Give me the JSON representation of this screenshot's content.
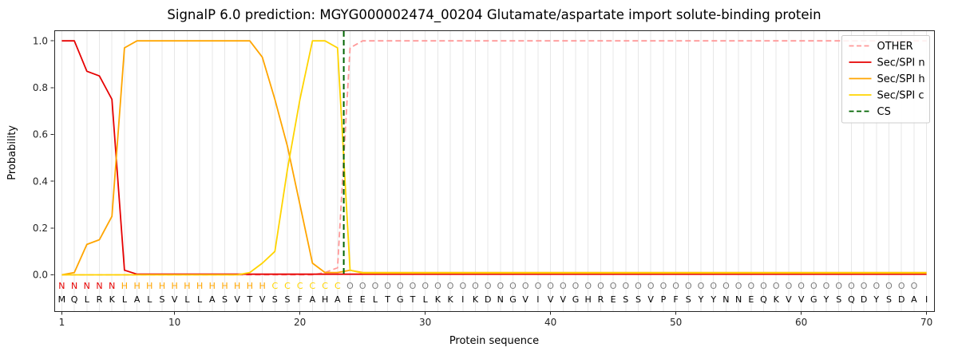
{
  "chart_data": {
    "type": "line",
    "title": "SignalP 6.0 prediction: MGYG000002474_00204 Glutamate/aspartate import solute-binding protein",
    "xlabel": "Protein sequence",
    "ylabel": "Probability",
    "xlim": [
      0.4,
      70.6
    ],
    "ylim": [
      0.0,
      1.0
    ],
    "x_ticks": [
      1,
      10,
      20,
      30,
      40,
      50,
      60,
      70
    ],
    "y_ticks": [
      0.0,
      0.2,
      0.4,
      0.6,
      0.8,
      1.0
    ],
    "grid": {
      "vertical_per_residue": true,
      "color": "#e7e7e7"
    },
    "legend_position": "upper right",
    "x": [
      1,
      2,
      3,
      4,
      5,
      6,
      7,
      8,
      9,
      10,
      11,
      12,
      13,
      14,
      15,
      16,
      17,
      18,
      19,
      20,
      21,
      22,
      23,
      24,
      25,
      26,
      27,
      28,
      29,
      30,
      31,
      32,
      33,
      34,
      35,
      36,
      37,
      38,
      39,
      40,
      41,
      42,
      43,
      44,
      45,
      46,
      47,
      48,
      49,
      50,
      51,
      52,
      53,
      54,
      55,
      56,
      57,
      58,
      59,
      60,
      61,
      62,
      63,
      64,
      65,
      66,
      67,
      68,
      69,
      70
    ],
    "series": [
      {
        "name": "OTHER",
        "color": "#ff9999",
        "style": "dashed",
        "values": [
          0,
          0,
          0,
          0,
          0,
          0,
          0,
          0,
          0,
          0,
          0,
          0,
          0,
          0,
          0,
          0,
          0,
          0,
          0,
          0,
          0,
          0.01,
          0.03,
          0.97,
          1,
          1,
          1,
          1,
          1,
          1,
          1,
          1,
          1,
          1,
          1,
          1,
          1,
          1,
          1,
          1,
          1,
          1,
          1,
          1,
          1,
          1,
          1,
          1,
          1,
          1,
          1,
          1,
          1,
          1,
          1,
          1,
          1,
          1,
          1,
          1,
          1,
          1,
          1,
          1,
          1,
          1,
          1,
          1,
          1,
          1
        ]
      },
      {
        "name": "Sec/SPI n",
        "color": "#e60000",
        "style": "solid",
        "values": [
          1,
          1,
          0.87,
          0.85,
          0.75,
          0.02,
          0.003,
          0.003,
          0.003,
          0.003,
          0.003,
          0.003,
          0.003,
          0.003,
          0.003,
          0.003,
          0.003,
          0.003,
          0.003,
          0.003,
          0.003,
          0.003,
          0.003,
          0.003,
          0.003,
          0.003,
          0.003,
          0.003,
          0.003,
          0.003,
          0.003,
          0.003,
          0.003,
          0.003,
          0.003,
          0.003,
          0.003,
          0.003,
          0.003,
          0.003,
          0.003,
          0.003,
          0.003,
          0.003,
          0.003,
          0.003,
          0.003,
          0.003,
          0.003,
          0.003,
          0.003,
          0.003,
          0.003,
          0.003,
          0.003,
          0.003,
          0.003,
          0.003,
          0.003,
          0.003,
          0.003,
          0.003,
          0.003,
          0.003,
          0.003,
          0.003,
          0.003,
          0.003,
          0.003,
          0.003
        ]
      },
      {
        "name": "Sec/SPI h",
        "color": "#ffa500",
        "style": "solid",
        "values": [
          0,
          0.01,
          0.13,
          0.15,
          0.25,
          0.97,
          1,
          1,
          1,
          1,
          1,
          1,
          1,
          1,
          1,
          1,
          0.93,
          0.75,
          0.55,
          0.3,
          0.05,
          0.01,
          0.01,
          0.02,
          0.01,
          0.01,
          0.01,
          0.01,
          0.01,
          0.01,
          0.01,
          0.01,
          0.01,
          0.01,
          0.01,
          0.01,
          0.01,
          0.01,
          0.01,
          0.01,
          0.01,
          0.01,
          0.01,
          0.01,
          0.01,
          0.01,
          0.01,
          0.01,
          0.01,
          0.01,
          0.01,
          0.01,
          0.01,
          0.01,
          0.01,
          0.01,
          0.01,
          0.01,
          0.01,
          0.01,
          0.01,
          0.01,
          0.01,
          0.01,
          0.01,
          0.01,
          0.01,
          0.01,
          0.01,
          0.01
        ]
      },
      {
        "name": "Sec/SPI c",
        "color": "#ffd400",
        "style": "solid",
        "values": [
          0,
          0,
          0,
          0,
          0,
          0,
          0,
          0,
          0,
          0,
          0,
          0,
          0,
          0,
          0,
          0.01,
          0.05,
          0.1,
          0.45,
          0.75,
          1,
          1,
          0.97,
          0.02,
          0.008,
          0.008,
          0.008,
          0.008,
          0.008,
          0.008,
          0.008,
          0.008,
          0.008,
          0.008,
          0.008,
          0.008,
          0.008,
          0.008,
          0.008,
          0.008,
          0.008,
          0.008,
          0.008,
          0.008,
          0.008,
          0.008,
          0.008,
          0.008,
          0.008,
          0.008,
          0.008,
          0.008,
          0.008,
          0.008,
          0.008,
          0.008,
          0.008,
          0.008,
          0.008,
          0.008,
          0.008,
          0.008,
          0.008,
          0.008,
          0.008,
          0.008,
          0.008,
          0.008,
          0.008,
          0.008
        ]
      }
    ],
    "cs_marker": {
      "label": "CS",
      "x": 23.5,
      "color": "#006400",
      "style": "dashed"
    },
    "region_row": {
      "labels": "NNNNNHHHHHHHHHHHHCCCCCCOOOOOOOOOOOOOOOOOOOOOOOOOOOOOOOOOOOOOOOOOOOOOO",
      "colors": {
        "N": "#e60000",
        "H": "#ffa500",
        "C": "#ffd400",
        "O": "#7f7f7f"
      }
    },
    "sequence_row": {
      "letters": "MQLRKLALSVLLASVTVSSFAHAEELTGTLKKIKDNGVIVVGHRESSVPFSYYNNEQKVVGYSQDYSDAI"
    }
  }
}
